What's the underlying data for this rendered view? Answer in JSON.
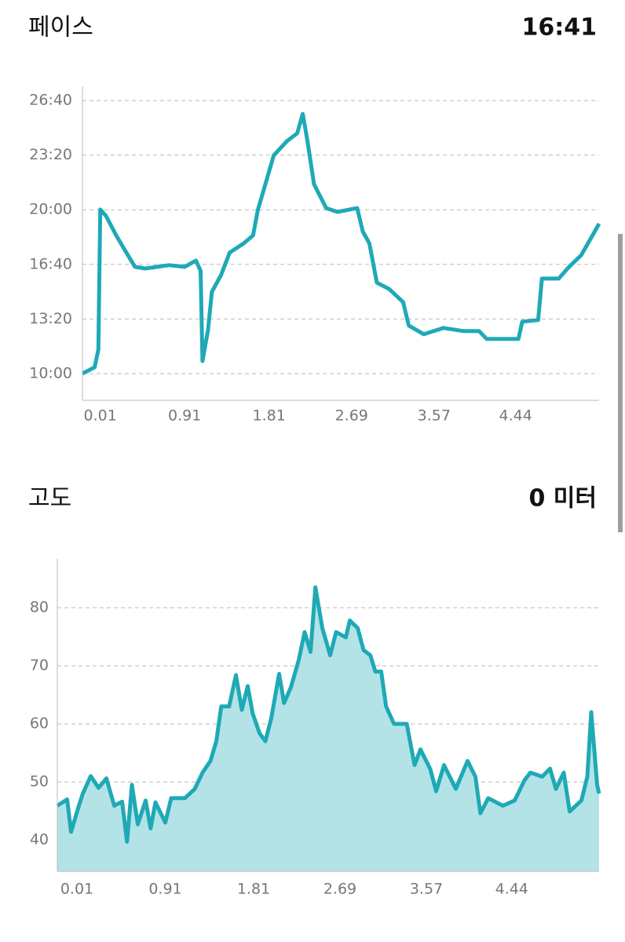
{
  "chart_data": [
    {
      "type": "line",
      "title": "페이스",
      "summary": "16:41",
      "color": "#1fa9b6",
      "grid": true,
      "x": [
        -0.18,
        -0.05,
        -0.01,
        0.01,
        0.07,
        0.18,
        0.28,
        0.38,
        0.49,
        0.62,
        0.74,
        0.91,
        1.03,
        1.08,
        1.1,
        1.16,
        1.2,
        1.3,
        1.39,
        1.54,
        1.64,
        1.69,
        1.77,
        1.86,
        2.0,
        2.11,
        2.17,
        2.22,
        2.29,
        2.42,
        2.54,
        2.75,
        2.81,
        2.88,
        2.96,
        3.09,
        3.24,
        3.3,
        3.46,
        3.67,
        3.88,
        4.05,
        4.13,
        4.3,
        4.47,
        4.51,
        4.68,
        4.72,
        4.9,
        5.01,
        5.14,
        5.26,
        5.33
      ],
      "series": [
        {
          "values": [
            600,
            623,
            689,
            1201,
            1178,
            1106,
            1048,
            991,
            985,
            991,
            997,
            991,
            1014,
            976,
            646,
            761,
            899,
            962,
            1043,
            1077,
            1106,
            1198,
            1293,
            1399,
            1451,
            1480,
            1551,
            1451,
            1293,
            1206,
            1192,
            1206,
            1120,
            1077,
            933,
            910,
            862,
            776,
            744,
            767,
            756,
            756,
            727,
            727,
            727,
            790,
            796,
            948,
            948,
            991,
            1034,
            1106,
            1149
          ]
        }
      ],
      "xlim": [
        -0.18,
        5.33
      ],
      "xticks": [
        0.01,
        0.91,
        1.81,
        2.69,
        3.57,
        4.44
      ],
      "ylim": [
        502,
        1652
      ],
      "yticks": [
        {
          "value": 600,
          "label": "10:00"
        },
        {
          "value": 800,
          "label": "13:20"
        },
        {
          "value": 1000,
          "label": "16:40"
        },
        {
          "value": 1200,
          "label": "20:00"
        },
        {
          "value": 1400,
          "label": "23:20"
        },
        {
          "value": 1600,
          "label": "26:40"
        }
      ]
    },
    {
      "type": "area",
      "title": "고도",
      "summary": "0 미터",
      "color": "#1fa9b6",
      "fill": "#b3e3e7",
      "grid": true,
      "x": [
        -0.19,
        -0.09,
        -0.05,
        0.03,
        0.07,
        0.15,
        0.23,
        0.31,
        0.39,
        0.47,
        0.52,
        0.57,
        0.63,
        0.71,
        0.76,
        0.81,
        0.91,
        0.97,
        1.11,
        1.21,
        1.29,
        1.37,
        1.43,
        1.48,
        1.56,
        1.63,
        1.69,
        1.75,
        1.8,
        1.87,
        1.93,
        1.99,
        2.07,
        2.12,
        2.19,
        2.27,
        2.33,
        2.39,
        2.44,
        2.51,
        2.59,
        2.65,
        2.75,
        2.79,
        2.87,
        2.93,
        3.0,
        3.05,
        3.11,
        3.16,
        3.24,
        3.37,
        3.45,
        3.51,
        3.61,
        3.67,
        3.75,
        3.87,
        3.99,
        4.07,
        4.12,
        4.2,
        4.35,
        4.47,
        4.57,
        4.63,
        4.75,
        4.83,
        4.89,
        4.97,
        5.03,
        5.15,
        5.21,
        5.25,
        5.31,
        5.33
      ],
      "series": [
        {
          "values": [
            45.9,
            47,
            41.4,
            45.9,
            48,
            51,
            49,
            50.6,
            45.9,
            46.6,
            39.7,
            49.5,
            42.7,
            46.8,
            42,
            46.5,
            43,
            47.2,
            47.2,
            48.8,
            51.6,
            53.6,
            57,
            63,
            63,
            68.4,
            62.4,
            66.5,
            61.8,
            58.4,
            57,
            61,
            68.6,
            63.6,
            66.3,
            71,
            75.8,
            72.4,
            83.5,
            76.5,
            71.8,
            75.8,
            74.9,
            77.8,
            76.5,
            72.7,
            71.8,
            69,
            69,
            63,
            60,
            60,
            52.9,
            55.6,
            52.2,
            48.4,
            52.9,
            48.8,
            53.6,
            50.9,
            44.6,
            47.2,
            45.9,
            46.8,
            50.3,
            51.6,
            50.9,
            52.3,
            48.8,
            51.6,
            44.9,
            46.8,
            50.9,
            62,
            49.5,
            48
          ]
        }
      ],
      "xlim": [
        -0.19,
        5.33
      ],
      "xticks": [
        0.01,
        0.91,
        1.81,
        2.69,
        3.57,
        4.44
      ],
      "ylim": [
        34.6,
        88.4
      ],
      "yticks": [
        40,
        50,
        60,
        70,
        80
      ]
    }
  ]
}
